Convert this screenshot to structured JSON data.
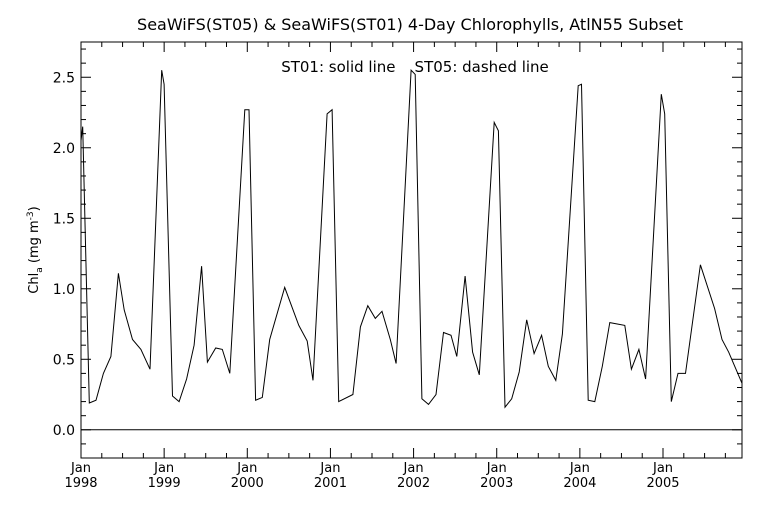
{
  "chart_data": {
    "type": "line",
    "title": "SeaWiFS(ST05) & SeaWiFS(ST01) 4-Day Chlorophylls, AtlN55 Subset",
    "legend_text": "ST01: solid line    ST05: dashed line",
    "ylabel": "Chl",
    "ylabel_sub": "a",
    "ylabel_unit_open": " (mg m",
    "ylabel_unit_sup": "-3",
    "ylabel_unit_close": ")",
    "ylim": [
      -0.2,
      2.75
    ],
    "xlim": [
      1998.0,
      2005.95
    ],
    "y_ticks": [
      {
        "value": 0.0,
        "label": "0.0"
      },
      {
        "value": 0.5,
        "label": "0.5"
      },
      {
        "value": 1.0,
        "label": "1.0"
      },
      {
        "value": 1.5,
        "label": "1.5"
      },
      {
        "value": 2.0,
        "label": "2.0"
      },
      {
        "value": 2.5,
        "label": "2.5"
      }
    ],
    "x_ticks": [
      {
        "value": 1998,
        "month": "Jan",
        "year": "1998"
      },
      {
        "value": 1999,
        "month": "Jan",
        "year": "1999"
      },
      {
        "value": 2000,
        "month": "Jan",
        "year": "2000"
      },
      {
        "value": 2001,
        "month": "Jan",
        "year": "2001"
      },
      {
        "value": 2002,
        "month": "Jan",
        "year": "2002"
      },
      {
        "value": 2003,
        "month": "Jan",
        "year": "2003"
      },
      {
        "value": 2004,
        "month": "Jan",
        "year": "2004"
      },
      {
        "value": 2005,
        "month": "Jan",
        "year": "2005"
      }
    ],
    "zero_line": 0.0,
    "series": [
      {
        "name": "ST01",
        "x": [
          1998.0,
          1998.02,
          1998.1,
          1998.18,
          1998.27,
          1998.36,
          1998.45,
          1998.52,
          1998.62,
          1998.72,
          1998.83,
          1998.97,
          1999.0,
          1999.1,
          1999.18,
          1999.27,
          1999.36,
          1999.45,
          1999.52,
          1999.62,
          1999.7,
          1999.79,
          1999.97,
          2000.02,
          2000.1,
          2000.18,
          2000.27,
          2000.45,
          2000.62,
          2000.72,
          2000.79,
          2000.96,
          2001.02,
          2001.1,
          2001.27,
          2001.36,
          2001.45,
          2001.54,
          2001.62,
          2001.72,
          2001.79,
          2001.97,
          2002.02,
          2002.1,
          2002.18,
          2002.27,
          2002.36,
          2002.45,
          2002.52,
          2002.62,
          2002.71,
          2002.79,
          2002.97,
          2003.02,
          2003.1,
          2003.18,
          2003.27,
          2003.36,
          2003.45,
          2003.54,
          2003.62,
          2003.71,
          2003.79,
          2003.98,
          2004.02,
          2004.1,
          2004.18,
          2004.27,
          2004.36,
          2004.45,
          2004.54,
          2004.62,
          2004.71,
          2004.79,
          2004.98,
          2005.02,
          2005.1,
          2005.18,
          2005.27,
          2005.45,
          2005.62,
          2005.71,
          2005.79,
          2005.95
        ],
        "y": [
          2.05,
          2.15,
          0.19,
          0.21,
          0.4,
          0.52,
          1.11,
          0.85,
          0.64,
          0.57,
          0.43,
          2.55,
          2.45,
          0.24,
          0.2,
          0.36,
          0.6,
          1.16,
          0.48,
          0.58,
          0.57,
          0.4,
          2.27,
          2.27,
          0.21,
          0.23,
          0.64,
          1.01,
          0.74,
          0.63,
          0.35,
          2.24,
          2.27,
          0.2,
          0.25,
          0.73,
          0.88,
          0.79,
          0.84,
          0.64,
          0.47,
          2.55,
          2.52,
          0.22,
          0.18,
          0.25,
          0.69,
          0.67,
          0.52,
          1.09,
          0.55,
          0.39,
          2.18,
          2.12,
          0.16,
          0.22,
          0.41,
          0.78,
          0.54,
          0.67,
          0.45,
          0.35,
          0.68,
          2.44,
          2.45,
          0.21,
          0.2,
          0.45,
          0.76,
          0.75,
          0.74,
          0.43,
          0.57,
          0.36,
          2.38,
          2.24,
          0.2,
          0.4,
          0.4,
          1.17,
          0.86,
          0.64,
          0.55,
          0.33
        ]
      }
    ]
  }
}
